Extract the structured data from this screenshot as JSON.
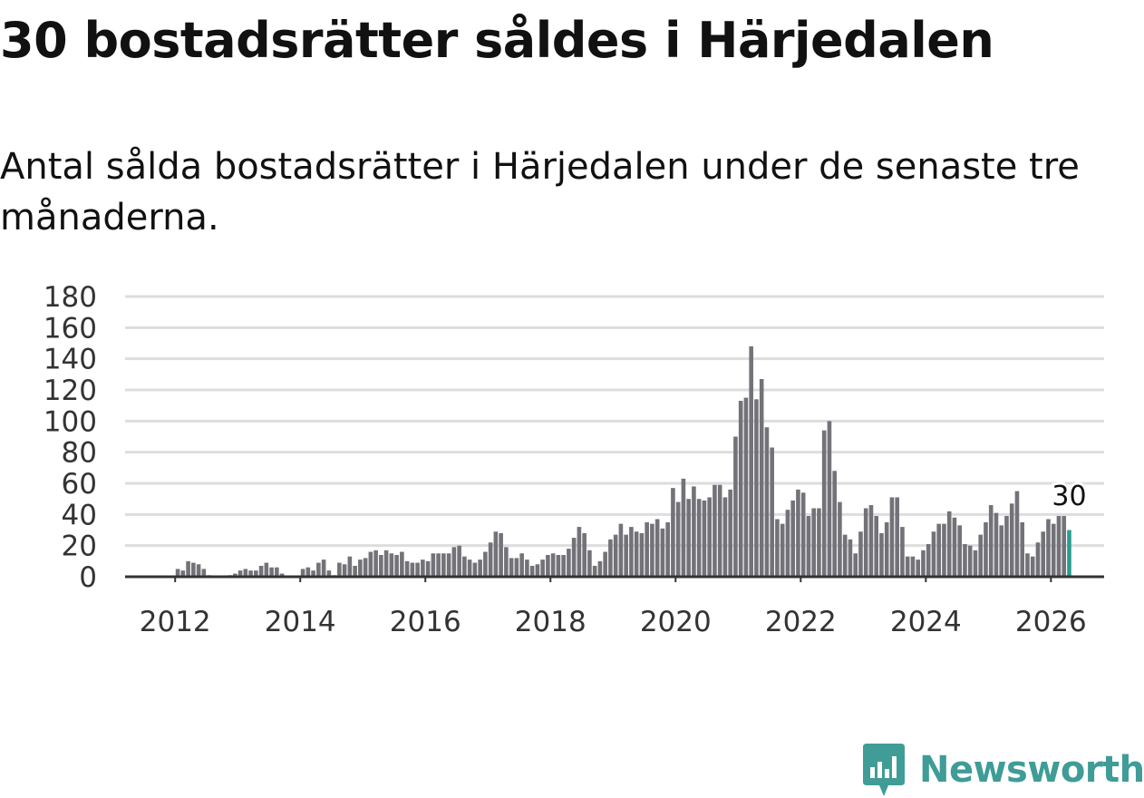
{
  "header": {
    "title": "30 bostadsrätter såldes i Härjedalen",
    "subtitle": "Antal sålda bostadsrätter i Härjedalen under de senaste tre månaderna."
  },
  "brand": {
    "name": "Newsworthy",
    "color": "#3f9c96"
  },
  "colors": {
    "bar": "#737278",
    "highlight": "#2a9d8f",
    "grid": "#dddddd",
    "axis": "#333333"
  },
  "chart_data": {
    "type": "bar",
    "title": "30 bostadsrätter såldes i Härjedalen",
    "xlabel": "",
    "ylabel": "",
    "ylim": [
      0,
      180
    ],
    "yticks": [
      0,
      20,
      40,
      60,
      80,
      100,
      120,
      140,
      160,
      180
    ],
    "xticks": [
      "2012",
      "2014",
      "2016",
      "2018",
      "2020",
      "2022",
      "2024",
      "2026"
    ],
    "x_start_year": 2011,
    "x_start_month": 5,
    "x_range": [
      2011.2,
      2026.85
    ],
    "grid": true,
    "legend": "none",
    "last_value_label": "30",
    "series": [
      {
        "name": "Antal sålda bostadsrätter",
        "values": [
          0,
          0,
          0,
          0,
          0,
          0,
          0,
          0,
          5,
          4,
          10,
          9,
          8,
          5,
          1,
          0,
          0,
          0,
          1,
          2,
          4,
          5,
          4,
          4,
          7,
          9,
          6,
          6,
          2,
          0,
          0,
          0,
          5,
          6,
          4,
          9,
          11,
          4,
          1,
          9,
          8,
          13,
          7,
          11,
          12,
          16,
          17,
          14,
          17,
          15,
          14,
          16,
          10,
          9,
          9,
          11,
          10,
          15,
          15,
          15,
          15,
          19,
          20,
          13,
          11,
          9,
          11,
          16,
          22,
          29,
          28,
          19,
          12,
          12,
          15,
          11,
          7,
          8,
          11,
          14,
          15,
          14,
          14,
          18,
          25,
          32,
          28,
          17,
          7,
          10,
          16,
          24,
          27,
          34,
          27,
          32,
          29,
          28,
          35,
          34,
          37,
          31,
          35,
          57,
          48,
          63,
          50,
          58,
          50,
          49,
          51,
          59,
          59,
          51,
          56,
          90,
          113,
          115,
          148,
          114,
          127,
          96,
          83,
          37,
          34,
          43,
          49,
          56,
          54,
          39,
          44,
          44,
          94,
          100,
          68,
          48,
          27,
          24,
          15,
          29,
          44,
          46,
          39,
          28,
          35,
          51,
          51,
          32,
          13,
          13,
          11,
          17,
          21,
          29,
          34,
          34,
          42,
          38,
          33,
          21,
          20,
          17,
          27,
          35,
          46,
          41,
          33,
          39,
          47,
          55,
          35,
          15,
          13,
          22,
          29,
          37,
          34,
          39,
          39,
          30
        ]
      }
    ]
  }
}
